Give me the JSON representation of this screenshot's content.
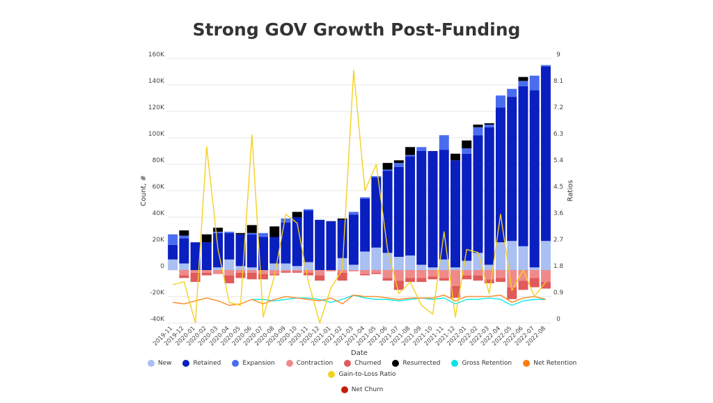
{
  "title": "Strong GOV Growth Post-Funding",
  "chart_data": {
    "type": "bar",
    "stacked": true,
    "xlabel": "Date",
    "ylabel_left": "Count, #",
    "ylabel_right": "Ratios",
    "ylim_left": [
      -40000,
      160000
    ],
    "ylim_right": [
      0,
      9
    ],
    "yticks_left": [
      "-40K",
      "-20K",
      "0",
      "20K",
      "40K",
      "60K",
      "80K",
      "100K",
      "120K",
      "140K",
      "160K"
    ],
    "yticks_right": [
      "0",
      "0.9",
      "1.8",
      "2.7",
      "3.6",
      "4.5",
      "5.4",
      "6.3",
      "7.2",
      "8.1",
      "9"
    ],
    "legend_position": "bottom",
    "categories": [
      "2019-11",
      "2019-12",
      "2020-01",
      "2020-02",
      "2020-03",
      "2020-04",
      "2020-05",
      "2020-06",
      "2020-07",
      "2020-08",
      "2020-09",
      "2020-10",
      "2020-11",
      "2020-12",
      "2021-01",
      "2021-02",
      "2021-03",
      "2021-04",
      "2021-05",
      "2021-06",
      "2021-07",
      "2021-08",
      "2021-09",
      "2021-10",
      "2021-11",
      "2021-12",
      "2022-01",
      "2022-02",
      "2022-03",
      "2022-04",
      "2022-05",
      "2022-06",
      "2022-07",
      "2022-08"
    ],
    "bar_series": [
      {
        "name": "New",
        "color": "#aabff2",
        "values": [
          8000,
          5000,
          0,
          0,
          2000,
          8000,
          3000,
          2000,
          0,
          5000,
          5000,
          3000,
          6000,
          0,
          0,
          9000,
          4000,
          14000,
          17000,
          13000,
          10000,
          11000,
          4000,
          2000,
          8000,
          2000,
          7000,
          13000,
          4000,
          21000,
          22000,
          18000,
          2000,
          22000
        ]
      },
      {
        "name": "Retained",
        "color": "#0a1fbf",
        "values": [
          11000,
          19000,
          21000,
          21000,
          26000,
          20000,
          24000,
          25000,
          25000,
          20000,
          31000,
          37000,
          39000,
          38000,
          37000,
          29000,
          38000,
          40000,
          53000,
          62000,
          68000,
          75000,
          86000,
          88000,
          83000,
          81000,
          81000,
          89000,
          104000,
          102000,
          109000,
          121000,
          134000,
          132000
        ]
      },
      {
        "name": "Expansion",
        "color": "#4a6df0",
        "values": [
          8000,
          2000,
          0,
          0,
          1000,
          1000,
          0,
          1000,
          3000,
          0,
          3000,
          0,
          1000,
          0,
          0,
          0,
          2000,
          1000,
          1000,
          1000,
          3000,
          1000,
          3000,
          0,
          11000,
          0,
          4000,
          6000,
          2000,
          9000,
          6000,
          4000,
          11000,
          1000
        ]
      },
      {
        "name": "Contraction",
        "color": "#f08a8a",
        "values": [
          0,
          -4000,
          -2000,
          -2000,
          -3000,
          -4000,
          -2000,
          -2000,
          -3000,
          -3000,
          -1000,
          -1000,
          -2000,
          -4000,
          -1000,
          -2000,
          -1000,
          -3000,
          -2000,
          -6000,
          -8000,
          -6000,
          -6000,
          -5000,
          -6000,
          -12000,
          -4000,
          -4000,
          -7000,
          -6000,
          -13000,
          -8000,
          -6000,
          -9000
        ]
      },
      {
        "name": "Churned",
        "color": "#e05a5a",
        "values": [
          0,
          -2000,
          -7000,
          -2000,
          0,
          -6000,
          -4000,
          -5000,
          -4000,
          -1000,
          -1000,
          -1000,
          -2000,
          -4000,
          0,
          -6000,
          0,
          -1000,
          -1000,
          -2000,
          -7000,
          -3000,
          -3000,
          -2000,
          -2000,
          -9000,
          -3000,
          -4000,
          -3000,
          -3000,
          -9000,
          -7000,
          -7000,
          -5000
        ]
      },
      {
        "name": "Resurrected",
        "color": "#000000",
        "values": [
          0,
          4000,
          0,
          6000,
          3000,
          0,
          1000,
          6000,
          0,
          8000,
          0,
          4000,
          0,
          0,
          0,
          1000,
          0,
          0,
          0,
          5000,
          2000,
          6000,
          0,
          0,
          0,
          5000,
          6000,
          2000,
          1000,
          0,
          0,
          3000,
          0,
          0
        ]
      }
    ],
    "line_series": [
      {
        "name": "Gross Retention",
        "color": "#00e5e5",
        "values": [
          0,
          0,
          0,
          0,
          0,
          0,
          0,
          0.8,
          0.8,
          0.75,
          0.8,
          0.85,
          0.85,
          0.8,
          0.7,
          0.8,
          0.95,
          0.85,
          0.8,
          0.8,
          0.75,
          0.8,
          0.85,
          0.8,
          0.85,
          0.65,
          0.8,
          0.8,
          0.85,
          0.8,
          0.6,
          0.75,
          0.8,
          0.8
        ]
      },
      {
        "name": "Net Retention",
        "color": "#ff7f0e",
        "values": [
          0.7,
          0.65,
          0.75,
          0.85,
          0.75,
          0.6,
          0.65,
          0.8,
          0.65,
          0.8,
          0.9,
          0.85,
          0.8,
          0.75,
          0.85,
          0.65,
          0.95,
          0.9,
          0.9,
          0.85,
          0.8,
          0.85,
          0.85,
          0.85,
          0.95,
          0.75,
          0.9,
          0.9,
          0.9,
          0.95,
          0.7,
          0.85,
          0.9,
          0.8
        ]
      },
      {
        "name": "Gain-to-Loss Ratio",
        "color": "#f5d020",
        "values": [
          1.3,
          1.4,
          0,
          6.0,
          2.5,
          0.7,
          0.6,
          6.4,
          0.2,
          1.6,
          3.7,
          3.4,
          1.4,
          0,
          1.2,
          1.8,
          8.6,
          4.5,
          5.4,
          2.5,
          1.0,
          1.4,
          0.6,
          0.3,
          3.1,
          0.2,
          2.5,
          2.4,
          1.0,
          3.7,
          1.1,
          1.8,
          0.9,
          1.4
        ]
      },
      {
        "name": "Net Churn",
        "color": "#c0200a",
        "values": [
          0,
          0,
          0,
          0,
          0,
          0,
          0,
          0,
          0,
          0,
          0,
          0,
          0,
          0,
          0,
          0,
          0,
          0,
          0,
          0,
          0,
          0,
          0,
          0,
          0,
          0,
          0,
          0,
          0,
          0,
          0,
          0,
          0,
          0
        ]
      }
    ]
  },
  "legend": [
    {
      "label": "New",
      "color": "#aabff2"
    },
    {
      "label": "Retained",
      "color": "#0a1fbf"
    },
    {
      "label": "Expansion",
      "color": "#4a6df0"
    },
    {
      "label": "Contraction",
      "color": "#f08a8a"
    },
    {
      "label": "Churned",
      "color": "#e05a5a"
    },
    {
      "label": "Resurrected",
      "color": "#000000"
    },
    {
      "label": "Gross Retention",
      "color": "#00e5e5"
    },
    {
      "label": "Net Retention",
      "color": "#ff7f0e"
    },
    {
      "label": "Gain-to-Loss Ratio",
      "color": "#f5d020"
    },
    {
      "label": "Net Churn",
      "color": "#c0200a"
    }
  ]
}
